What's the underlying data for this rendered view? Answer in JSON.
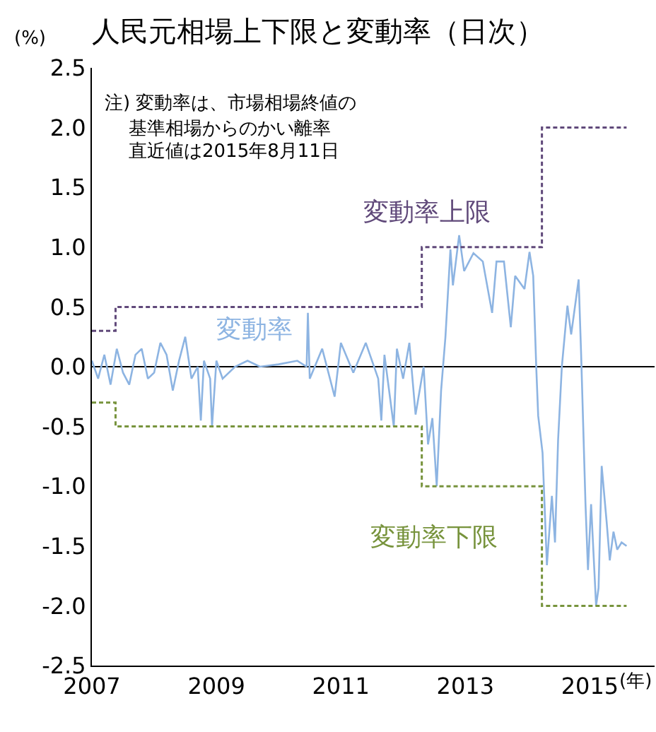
{
  "chart_data": {
    "type": "line",
    "title": "人民元相場上下限と変動率（日次）",
    "xlabel": "(年)",
    "ylabel": "(%)",
    "annotations": [
      "注) 変動率は、市場相場終値の",
      "基準相場からのかい離率",
      "直近値は2015年8月11日"
    ],
    "xlim": [
      2007,
      2016.04
    ],
    "xticks": [
      2007,
      2009,
      2011,
      2013,
      2015
    ],
    "ylim": [
      -2.5,
      2.5
    ],
    "yticks": [
      -2.5,
      {
        "value": -2,
        "label": "-2.0"
      },
      -1.5,
      {
        "value": -1,
        "label": "-1.0"
      },
      -0.5,
      {
        "value": 0,
        "label": "0.0"
      },
      0.5,
      {
        "value": 1,
        "label": "1.0"
      },
      1.5,
      {
        "value": 2,
        "label": "2.0"
      },
      2.5
    ],
    "grid": false,
    "legend": false,
    "marker": "none",
    "ref_lines": [
      {
        "axis": "y",
        "value": 0,
        "color": "#000000"
      }
    ],
    "series": [
      {
        "name": "変動率",
        "type": "line",
        "color": "#8db4e2",
        "line_style": "solid",
        "x": [
          2007.0,
          2007.1,
          2007.2,
          2007.3,
          2007.4,
          2007.5,
          2007.6,
          2007.7,
          2007.8,
          2007.9,
          2008.0,
          2008.1,
          2008.2,
          2008.3,
          2008.4,
          2008.5,
          2008.6,
          2008.7,
          2008.75,
          2008.8,
          2008.9,
          2008.93,
          2009.0,
          2009.1,
          2009.3,
          2009.5,
          2009.7,
          2010.0,
          2010.3,
          2010.45,
          2010.47,
          2010.5,
          2010.7,
          2010.9,
          2011.0,
          2011.2,
          2011.4,
          2011.6,
          2011.65,
          2011.7,
          2011.8,
          2011.85,
          2011.9,
          2012.0,
          2012.1,
          2012.2,
          2012.33,
          2012.4,
          2012.47,
          2012.54,
          2012.61,
          2012.68,
          2012.76,
          2012.8,
          2012.9,
          2012.98,
          2013.13,
          2013.28,
          2013.43,
          2013.5,
          2013.62,
          2013.73,
          2013.8,
          2013.95,
          2014.03,
          2014.09,
          2014.14,
          2014.17,
          2014.24,
          2014.31,
          2014.39,
          2014.44,
          2014.49,
          2014.55,
          2014.64,
          2014.7,
          2014.82,
          2014.86,
          2014.93,
          2014.97,
          2015.02,
          2015.1,
          2015.14,
          2015.19,
          2015.27,
          2015.32,
          2015.38,
          2015.44,
          2015.51,
          2015.59
        ],
        "values": [
          0.05,
          -0.1,
          0.1,
          -0.15,
          0.15,
          -0.05,
          -0.15,
          0.1,
          0.15,
          -0.1,
          -0.05,
          0.2,
          0.1,
          -0.2,
          0.05,
          0.25,
          -0.1,
          0.0,
          -0.45,
          0.05,
          -0.1,
          -0.5,
          0.05,
          -0.1,
          0.0,
          0.05,
          0.0,
          0.02,
          0.05,
          0.0,
          0.45,
          -0.1,
          0.15,
          -0.25,
          0.2,
          -0.05,
          0.2,
          -0.1,
          -0.45,
          0.1,
          -0.3,
          -0.5,
          0.15,
          -0.1,
          0.2,
          -0.4,
          0.0,
          -0.65,
          -0.43,
          -1.0,
          -0.2,
          0.25,
          0.98,
          0.68,
          1.1,
          0.8,
          0.95,
          0.88,
          0.45,
          0.88,
          0.88,
          0.33,
          0.76,
          0.65,
          0.96,
          0.76,
          -0.02,
          -0.41,
          -0.72,
          -1.66,
          -1.08,
          -1.47,
          -0.61,
          0.0,
          0.51,
          0.27,
          0.73,
          0.1,
          -1.15,
          -1.7,
          -1.15,
          -2.0,
          -1.85,
          -0.83,
          -1.3,
          -1.62,
          -1.38,
          -1.53,
          -1.47,
          -1.5
        ]
      },
      {
        "name": "変動率上限",
        "type": "step",
        "color": "#60497a",
        "line_style": "dashed",
        "x": [
          2007.0,
          2007.38,
          2012.3,
          2014.23,
          2015.59
        ],
        "values": [
          0.3,
          0.5,
          1.0,
          2.0,
          2.0
        ]
      },
      {
        "name": "変動率下限",
        "type": "step",
        "color": "#77933c",
        "line_style": "dashed",
        "x": [
          2007.0,
          2007.38,
          2012.3,
          2014.23,
          2015.59
        ],
        "values": [
          -0.3,
          -0.5,
          -1.0,
          -2.0,
          -2.0
        ]
      }
    ]
  }
}
